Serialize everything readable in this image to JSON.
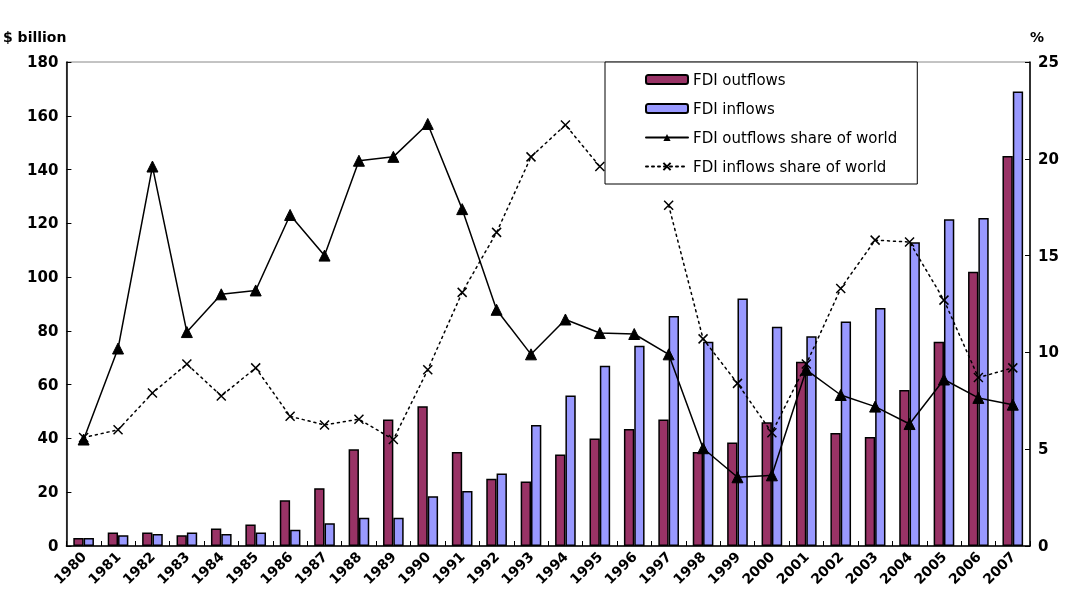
{
  "chart_data": {
    "type": "bar",
    "ylabel": "$ billion",
    "y2label": "%",
    "categories": [
      "1980",
      "1981",
      "1982",
      "1983",
      "1984",
      "1985",
      "1986",
      "1987",
      "1988",
      "1989",
      "1990",
      "1991",
      "1992",
      "1993",
      "1994",
      "1995",
      "1996",
      "1997",
      "1998",
      "1999",
      "2000",
      "2001",
      "2002",
      "2003",
      "2004",
      "2005",
      "2006",
      "2007"
    ],
    "series": [
      {
        "name": "FDI outflows",
        "color": "#993366",
        "values": [
          3,
          5,
          5,
          4,
          6.5,
          8,
          17,
          21.5,
          36,
          47,
          52,
          35,
          25,
          24,
          34,
          40,
          43.5,
          47,
          35,
          38.5,
          46,
          68.5,
          42,
          40.5,
          58,
          76,
          102,
          145
        ]
      },
      {
        "name": "FDI inflows",
        "color": "#9999ff",
        "values": [
          3,
          4,
          4.5,
          5,
          4.5,
          5,
          6,
          8.5,
          10.5,
          10.5,
          18.5,
          20.5,
          27,
          45,
          56,
          67,
          74.5,
          85.5,
          76,
          92,
          81.5,
          78,
          83.5,
          88.5,
          113,
          121.5,
          122,
          169
        ]
      },
      {
        "name": "FDI outflows share of world",
        "type": "line",
        "axis": "y2",
        "color": "#000000",
        "marker": "triangle",
        "line_style": "solid",
        "values": [
          5.5,
          10.2,
          19.6,
          11.05,
          13.0,
          13.2,
          17.1,
          15.0,
          19.9,
          20.1,
          21.8,
          17.4,
          12.2,
          9.9,
          11.7,
          11.0,
          10.95,
          9.9,
          5.05,
          3.55,
          3.65,
          9.1,
          7.8,
          7.2,
          6.3,
          8.6,
          7.65,
          7.3
        ]
      },
      {
        "name": "FDI inflows share of world",
        "type": "line",
        "axis": "y2",
        "color": "#000000",
        "marker": "cross",
        "line_style": "dotted",
        "values": [
          5.6,
          6.0,
          7.9,
          9.4,
          7.75,
          9.2,
          6.7,
          6.25,
          6.55,
          5.5,
          9.1,
          13.1,
          16.2,
          20.1,
          21.75,
          19.6,
          null,
          17.6,
          10.7,
          8.4,
          5.85,
          9.4,
          13.3,
          15.8,
          15.7,
          12.7,
          8.7,
          9.2
        ]
      }
    ],
    "ylim": [
      0,
      180
    ],
    "yticks": [
      0,
      20,
      40,
      60,
      80,
      100,
      120,
      140,
      160,
      180
    ],
    "y2lim": [
      0,
      25
    ],
    "y2ticks": [
      0,
      5,
      10,
      15,
      20,
      25
    ],
    "grid": false,
    "legend": "top right"
  }
}
